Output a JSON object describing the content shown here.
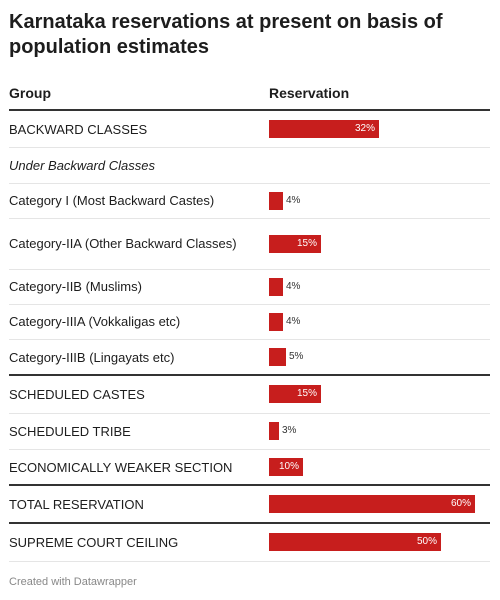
{
  "title": "Karnataka reservations at present on basis of population estimates",
  "columns": {
    "group": "Group",
    "value": "Reservation"
  },
  "footer": "Created with Datawrapper",
  "colors": {
    "bar": "#c71e1d",
    "rule_strong": "#333333",
    "rule_light": "#e5e5e5"
  },
  "chart_data": {
    "type": "bar",
    "orientation": "horizontal",
    "title": "Karnataka reservations at present on basis of population estimates",
    "xlabel": "",
    "ylabel": "",
    "unit": "%",
    "xlim": [
      0,
      60
    ],
    "categories": [
      "BACKWARD CLASSES",
      "Under Backward Classes",
      "Category I (Most Backward Castes)",
      "Category-IIA (Other Backward Classes)",
      "Category-IIB (Muslims)",
      "Category-IIIA (Vokkaligas etc)",
      "Category-IIIB (Lingayats etc)",
      "SCHEDULED CASTES",
      "SCHEDULED TRIBE",
      "ECONOMICALLY WEAKER SECTION",
      "TOTAL RESERVATION",
      "SUPREME COURT CEILING"
    ],
    "values": [
      32,
      null,
      4,
      15,
      4,
      4,
      5,
      15,
      3,
      10,
      60,
      50
    ],
    "labels": [
      "32%",
      "",
      "4%",
      "15%",
      "4%",
      "4%",
      "5%",
      "15%",
      "3%",
      "10%",
      "60%",
      "50%"
    ]
  }
}
